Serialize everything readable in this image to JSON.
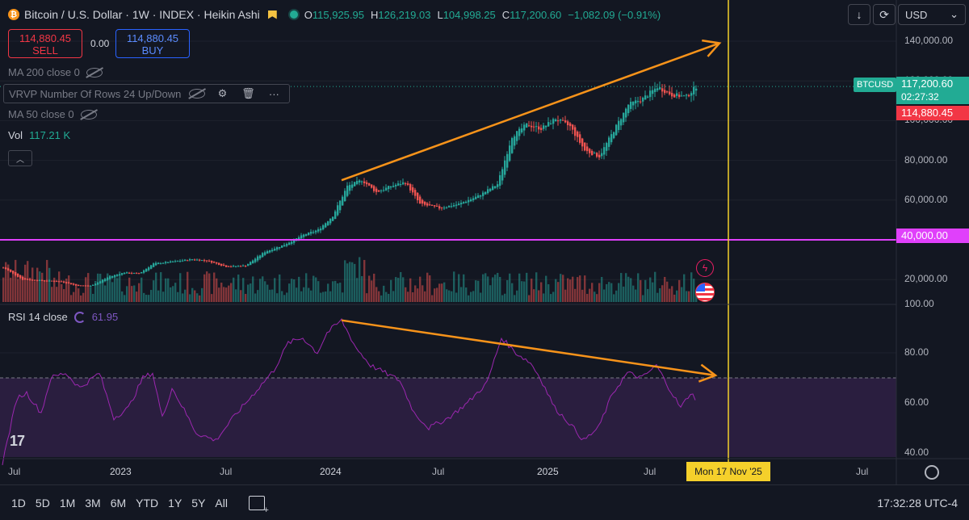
{
  "symbol": {
    "title": "Bitcoin / U.S. Dollar · 1W · INDEX · Heikin Ashi",
    "logo_glyph": "₿",
    "ohlc": [
      {
        "k": "O",
        "v": "115,925.95"
      },
      {
        "k": "H",
        "v": "126,219.03"
      },
      {
        "k": "L",
        "v": "104,998.25"
      },
      {
        "k": "C",
        "v": "117,200.60"
      },
      {
        "k": "",
        "v": "−1,082.09 (−0.91%)"
      }
    ]
  },
  "trade": {
    "sell_price": "114,880.45",
    "sell_label": "SELL",
    "spread": "0.00",
    "buy_price": "114,880.45",
    "buy_label": "BUY"
  },
  "indicators": {
    "ma200": "MA 200 close 0",
    "vrvp": "VRVP Number Of Rows 24 Up/Down",
    "ma50": "MA 50 close 0",
    "vol_label": "Vol",
    "vol_value": "117.21 K"
  },
  "rsi": {
    "label": "RSI 14 close",
    "value": "61.95"
  },
  "toolbar": {
    "currency": "USD",
    "down_icon": "↓",
    "reset_icon": "⟳"
  },
  "price_axis": {
    "ticks": [
      "140,000.00",
      "120,000.00",
      "100,000.00",
      "80,000.00",
      "60,000.00",
      "20,000.00"
    ],
    "ticker": "BTCUSD",
    "last_price": "117,200.60",
    "countdown": "02:27:32",
    "bid_price": "114,880.45",
    "level_price": "40,000.00"
  },
  "rsi_axis": {
    "ticks": [
      "100.00",
      "80.00",
      "60.00",
      "40.00"
    ]
  },
  "time_axis": {
    "ticks": [
      "Jul",
      "2023",
      "Jul",
      "2024",
      "Jul",
      "2025",
      "Jul",
      "Jul"
    ],
    "crosshair_date": "Mon 17 Nov '25"
  },
  "bottom": {
    "timeframes": [
      "1D",
      "5D",
      "1M",
      "3M",
      "6M",
      "YTD",
      "1Y",
      "5Y",
      "All"
    ],
    "clock": "17:32:28 UTC-4"
  },
  "brand": {
    "logo_text": "17"
  },
  "colors": {
    "up": "#26a69a",
    "down": "#ef5350",
    "rsi": "#9c27b0",
    "level": "#e040fb",
    "trend": "#f7931a",
    "crosshair": "#f5d02b"
  },
  "chart_data": [
    {
      "type": "candlestick",
      "title": "Bitcoin / U.S. Dollar · 1W · INDEX · Heikin Ashi",
      "ylabel": "",
      "ylim": [
        0,
        150000
      ],
      "x_start": "2022-06",
      "interval": "1W",
      "price_points": [
        [
          0,
          26000
        ],
        [
          8,
          20000
        ],
        [
          16,
          19500
        ],
        [
          24,
          19000
        ],
        [
          30,
          17000
        ],
        [
          36,
          16800
        ],
        [
          44,
          21500
        ],
        [
          50,
          23500
        ],
        [
          56,
          23000
        ],
        [
          62,
          28000
        ],
        [
          70,
          29000
        ],
        [
          78,
          30200
        ],
        [
          84,
          29500
        ],
        [
          92,
          26500
        ],
        [
          100,
          27000
        ],
        [
          108,
          34000
        ],
        [
          116,
          37500
        ],
        [
          124,
          42500
        ],
        [
          130,
          45000
        ],
        [
          136,
          52000
        ],
        [
          142,
          67000
        ],
        [
          148,
          70000
        ],
        [
          154,
          64000
        ],
        [
          160,
          67000
        ],
        [
          166,
          69000
        ],
        [
          172,
          58000
        ],
        [
          180,
          56000
        ],
        [
          188,
          58000
        ],
        [
          196,
          62000
        ],
        [
          204,
          68000
        ],
        [
          210,
          92000
        ],
        [
          216,
          98000
        ],
        [
          222,
          96000
        ],
        [
          228,
          101000
        ],
        [
          234,
          97000
        ],
        [
          240,
          85000
        ],
        [
          246,
          82000
        ],
        [
          252,
          95000
        ],
        [
          258,
          108000
        ],
        [
          264,
          111000
        ],
        [
          270,
          117000
        ],
        [
          276,
          113000
        ],
        [
          282,
          112000
        ],
        [
          286,
          117200
        ]
      ],
      "last_close": 117200.6,
      "horizontal_level": 40000,
      "trendline": {
        "from": [
          140,
          70000
        ],
        "to": [
          286,
          139000
        ]
      }
    },
    {
      "type": "line",
      "title": "RSI 14 close",
      "ylim": [
        35,
        100
      ],
      "overbought": 70,
      "values_points": [
        [
          0,
          36
        ],
        [
          6,
          62
        ],
        [
          10,
          64
        ],
        [
          16,
          56
        ],
        [
          20,
          70
        ],
        [
          26,
          72
        ],
        [
          32,
          66
        ],
        [
          40,
          72
        ],
        [
          46,
          54
        ],
        [
          52,
          58
        ],
        [
          58,
          70
        ],
        [
          62,
          72
        ],
        [
          66,
          54
        ],
        [
          70,
          66
        ],
        [
          74,
          59
        ],
        [
          80,
          48
        ],
        [
          88,
          45
        ],
        [
          96,
          55
        ],
        [
          104,
          64
        ],
        [
          112,
          73
        ],
        [
          118,
          84
        ],
        [
          124,
          86
        ],
        [
          130,
          80
        ],
        [
          134,
          88
        ],
        [
          140,
          93
        ],
        [
          146,
          82
        ],
        [
          152,
          75
        ],
        [
          158,
          72
        ],
        [
          164,
          69
        ],
        [
          170,
          56
        ],
        [
          176,
          50
        ],
        [
          184,
          54
        ],
        [
          192,
          60
        ],
        [
          200,
          68
        ],
        [
          206,
          86
        ],
        [
          212,
          80
        ],
        [
          218,
          76
        ],
        [
          222,
          70
        ],
        [
          228,
          58
        ],
        [
          234,
          52
        ],
        [
          240,
          45
        ],
        [
          246,
          50
        ],
        [
          252,
          64
        ],
        [
          258,
          72
        ],
        [
          264,
          70
        ],
        [
          270,
          75
        ],
        [
          274,
          68
        ],
        [
          280,
          58
        ],
        [
          284,
          64
        ],
        [
          286,
          62
        ]
      ],
      "trendline": {
        "from": [
          140,
          93
        ],
        "to": [
          286,
          71
        ]
      }
    }
  ]
}
